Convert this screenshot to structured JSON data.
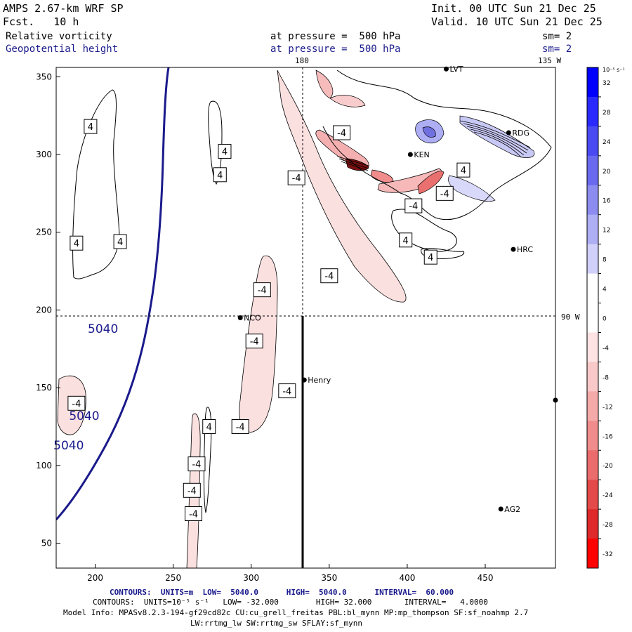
{
  "header": {
    "title": "AMPS 2.67-km WRF SP",
    "forecast": "Fcst.   10 h",
    "init": "Init. 00 UTC Sun 21 Dec 25",
    "valid": "Valid. 10 UTC Sun 21 Dec 25",
    "field1_name": "Relative vorticity",
    "field1_level": "at pressure =  500 hPa",
    "field1_sm": "sm= 2",
    "field2_name": "Geopotential height",
    "field2_level": "at pressure =  500 hPa",
    "field2_sm": "sm= 2"
  },
  "map": {
    "meridian_labels": {
      "top_180": "180",
      "top_135w": "135 W",
      "right_90w": "90 W"
    },
    "stations": [
      {
        "id": "LVT",
        "x": 425,
        "y": 355
      },
      {
        "id": "RDG",
        "x": 465,
        "y": 314
      },
      {
        "id": "KEN",
        "x": 402,
        "y": 300
      },
      {
        "id": "HRC",
        "x": 468,
        "y": 239
      },
      {
        "id": "NCO",
        "x": 293,
        "y": 195
      },
      {
        "id": "Henry",
        "x": 334,
        "y": 155
      },
      {
        "id": "AG2",
        "x": 460,
        "y": 72
      }
    ],
    "unlabeled_station": {
      "x": 495,
      "y": 142
    },
    "height_labels": [
      {
        "text": "5040",
        "x": 205,
        "y": 188
      },
      {
        "text": "5040",
        "x": 193,
        "y": 132
      },
      {
        "text": "5040",
        "x": 183,
        "y": 113
      }
    ],
    "vorticity_labels": [
      {
        "text": "4",
        "x": 197,
        "y": 318
      },
      {
        "text": "4",
        "x": 283,
        "y": 302
      },
      {
        "text": "4",
        "x": 280,
        "y": 287
      },
      {
        "text": "4",
        "x": 188,
        "y": 243
      },
      {
        "text": "4",
        "x": 216,
        "y": 244
      },
      {
        "text": "-4",
        "x": 358,
        "y": 314
      },
      {
        "text": "-4",
        "x": 329,
        "y": 285
      },
      {
        "text": "4",
        "x": 436,
        "y": 290
      },
      {
        "text": "-4",
        "x": 424,
        "y": 275
      },
      {
        "text": "-4",
        "x": 404,
        "y": 267
      },
      {
        "text": "4",
        "x": 399,
        "y": 245
      },
      {
        "text": "4",
        "x": 415,
        "y": 234
      },
      {
        "text": "-4",
        "x": 350,
        "y": 222
      },
      {
        "text": "-4",
        "x": 307,
        "y": 213
      },
      {
        "text": "-4",
        "x": 302,
        "y": 180
      },
      {
        "text": "-4",
        "x": 323,
        "y": 148
      },
      {
        "text": "-4",
        "x": 293,
        "y": 125
      },
      {
        "text": "-4",
        "x": 188,
        "y": 140
      },
      {
        "text": "4",
        "x": 273,
        "y": 125
      },
      {
        "text": "-4",
        "x": 265,
        "y": 101
      },
      {
        "text": "-4",
        "x": 262,
        "y": 84
      },
      {
        "text": "-4",
        "x": 263,
        "y": 69
      }
    ]
  },
  "chart_data": {
    "type": "map",
    "x_axis": {
      "ticks": [
        200,
        250,
        300,
        350,
        400,
        450
      ],
      "range": [
        175,
        495
      ]
    },
    "y_axis": {
      "ticks": [
        50,
        100,
        150,
        200,
        250,
        300,
        350
      ],
      "range": [
        34,
        356
      ]
    },
    "cross_section_x": 334,
    "crosshair_y": 196,
    "colorbar": {
      "unit": "10⁻⁵ s⁻¹",
      "labels": [
        "32",
        "28",
        "24",
        "20",
        "16",
        "12",
        "8",
        "4",
        "0",
        "-4",
        "-8",
        "-12",
        "-16",
        "-20",
        "-24",
        "-28",
        "-32"
      ],
      "colors": [
        "#0000ff",
        "#2a2aff",
        "#4a4af2",
        "#6a6af0",
        "#8c8cf0",
        "#aeaef5",
        "#d0d0fa",
        "#ffffff",
        "#ffffff",
        "#fde3e3",
        "#f9c8c8",
        "#f5aaaa",
        "#f08c8c",
        "#eb6c6c",
        "#e44a4a",
        "#de2a2a",
        "#ff0000"
      ]
    }
  },
  "footer": {
    "line1": {
      "contours": "CONTOURS:",
      "units": "UNITS=m",
      "low": "LOW=  5040.0",
      "high": "HIGH=  5040.0",
      "interval": "INTERVAL=  60.000"
    },
    "line2": "CONTOURS:  UNITS=10⁻⁵ s⁻¹   LOW= -32.000        HIGH= 32.000       INTERVAL=   4.0000",
    "line3": "Model Info: MPASv8.2.3-194-gf29cd82c CU:cu_grell_freitas PBL:bl_mynn MP:mp_thompson SF:sf_noahmp 2.7",
    "line4": "LW:rrtmg_lw SW:rrtmg_sw SFLAY:sf_mynn"
  }
}
